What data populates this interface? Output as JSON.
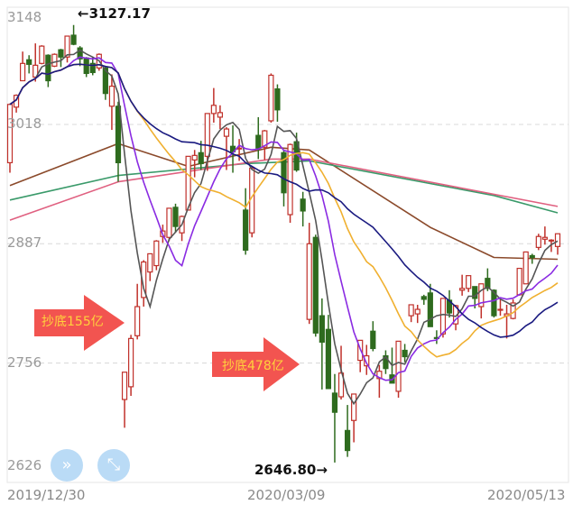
{
  "chart_data": {
    "type": "candlestick",
    "ylim": [
      2626,
      3148
    ],
    "y_ticks": [
      "3148",
      "3018",
      "2887",
      "2756",
      "2626"
    ],
    "x_tick_labels": [
      "2019/12/30",
      "2020/03/09",
      "2020/05/13"
    ],
    "grid": "dashed horizontal",
    "up_color": "#c0302a",
    "down_color": "#2e6b1e",
    "dates": [
      "2019/12/30",
      "2019/12/31",
      "2020/01/02",
      "2020/01/03",
      "2020/01/06",
      "2020/01/07",
      "2020/01/08",
      "2020/01/09",
      "2020/01/10",
      "2020/01/13",
      "2020/01/14",
      "2020/01/15",
      "2020/01/16",
      "2020/01/17",
      "2020/01/20",
      "2020/01/21",
      "2020/01/22",
      "2020/01/23",
      "2020/02/03",
      "2020/02/04",
      "2020/02/05",
      "2020/02/06",
      "2020/02/07",
      "2020/02/10",
      "2020/02/11",
      "2020/02/12",
      "2020/02/13",
      "2020/02/14",
      "2020/02/17",
      "2020/02/18",
      "2020/02/19",
      "2020/02/20",
      "2020/02/21",
      "2020/02/24",
      "2020/02/25",
      "2020/02/26",
      "2020/02/27",
      "2020/02/28",
      "2020/03/02",
      "2020/03/03",
      "2020/03/04",
      "2020/03/05",
      "2020/03/06",
      "2020/03/09",
      "2020/03/10",
      "2020/03/11",
      "2020/03/12",
      "2020/03/13",
      "2020/03/16",
      "2020/03/17",
      "2020/03/18",
      "2020/03/19",
      "2020/03/20",
      "2020/03/23",
      "2020/03/24",
      "2020/03/25",
      "2020/03/26",
      "2020/03/27",
      "2020/03/30",
      "2020/03/31",
      "2020/04/01",
      "2020/04/02",
      "2020/04/03",
      "2020/04/07",
      "2020/04/08",
      "2020/04/09",
      "2020/04/10",
      "2020/04/13",
      "2020/04/14",
      "2020/04/15",
      "2020/04/16",
      "2020/04/17",
      "2020/04/20",
      "2020/04/21",
      "2020/04/22",
      "2020/04/23",
      "2020/04/24",
      "2020/04/27",
      "2020/04/28",
      "2020/04/29",
      "2020/04/30",
      "2020/05/06",
      "2020/05/07",
      "2020/05/08",
      "2020/05/11",
      "2020/05/12",
      "2020/05/13"
    ],
    "ohlc": [
      [
        2976,
        3041,
        2965,
        3040
      ],
      [
        3037,
        3051,
        3031,
        3050
      ],
      [
        3066,
        3098,
        3066,
        3085
      ],
      [
        3089,
        3094,
        3074,
        3084
      ],
      [
        3070,
        3107,
        3065,
        3083
      ],
      [
        3085,
        3105,
        3084,
        3104
      ],
      [
        3094,
        3095,
        3059,
        3066
      ],
      [
        3082,
        3096,
        3081,
        3095
      ],
      [
        3100,
        3101,
        3081,
        3092
      ],
      [
        3092,
        3115,
        3086,
        3115
      ],
      [
        3116,
        3127.17,
        3105,
        3106
      ],
      [
        3102,
        3104,
        3082,
        3090
      ],
      [
        3091,
        3092,
        3070,
        3074
      ],
      [
        3085,
        3092,
        3072,
        3075
      ],
      [
        3080,
        3096,
        3077,
        3095
      ],
      [
        3080,
        3081,
        3045,
        3052
      ],
      [
        3038,
        3073,
        3012,
        3060
      ],
      [
        3038,
        3043,
        2955,
        2976
      ],
      [
        2716,
        2746,
        2685,
        2746
      ],
      [
        2730,
        2787,
        2720,
        2783
      ],
      [
        2786,
        2843,
        2782,
        2818
      ],
      [
        2828,
        2869,
        2818,
        2867
      ],
      [
        2856,
        2876,
        2846,
        2876
      ],
      [
        2863,
        2891,
        2858,
        2890
      ],
      [
        2895,
        2908,
        2888,
        2901
      ],
      [
        2894,
        2926,
        2890,
        2926
      ],
      [
        2927,
        2931,
        2899,
        2906
      ],
      [
        2899,
        2918,
        2890,
        2917
      ],
      [
        2924,
        2983,
        2924,
        2983
      ],
      [
        2979,
        2990,
        2960,
        2984
      ],
      [
        2987,
        3000,
        2968,
        2975
      ],
      [
        2983,
        3030,
        2967,
        3030
      ],
      [
        3030,
        3058,
        3020,
        3039
      ],
      [
        3026,
        3039,
        3013,
        3031
      ],
      [
        3005,
        3015,
        2968,
        3013
      ],
      [
        2994,
        3017,
        2965,
        2988
      ],
      [
        2992,
        3002,
        2978,
        2992
      ],
      [
        2924,
        2948,
        2875,
        2880
      ],
      [
        2899,
        2971,
        2894,
        2970
      ],
      [
        3006,
        3026,
        2980,
        2992
      ],
      [
        2993,
        3012,
        2979,
        3011
      ],
      [
        3022,
        3074,
        3020,
        3072
      ],
      [
        3057,
        3062,
        3021,
        3034
      ],
      [
        2987,
        2989,
        2928,
        2943
      ],
      [
        2919,
        2997,
        2910,
        2996
      ],
      [
        2999,
        3009,
        2966,
        2968
      ],
      [
        2936,
        2944,
        2906,
        2923
      ],
      [
        2804,
        2910,
        2799,
        2887
      ],
      [
        2894,
        2897,
        2785,
        2789
      ],
      [
        2808,
        2827,
        2727,
        2779
      ],
      [
        2793,
        2809,
        2728,
        2728
      ],
      [
        2723,
        2744,
        2646.8,
        2702
      ],
      [
        2719,
        2775,
        2716,
        2745
      ],
      [
        2682,
        2710,
        2653,
        2660
      ],
      [
        2693,
        2722,
        2669,
        2722
      ],
      [
        2759,
        2781,
        2746,
        2781
      ],
      [
        2753,
        2776,
        2743,
        2764
      ],
      [
        2791,
        2802,
        2769,
        2772
      ],
      [
        2739,
        2754,
        2718,
        2747
      ],
      [
        2764,
        2770,
        2744,
        2750
      ],
      [
        2743,
        2773,
        2734,
        2734
      ],
      [
        2725,
        2780,
        2718,
        2780
      ],
      [
        2770,
        2777,
        2757,
        2763
      ],
      [
        2808,
        2820,
        2801,
        2820
      ],
      [
        2810,
        2820,
        2800,
        2815
      ],
      [
        2829,
        2831,
        2820,
        2826
      ],
      [
        2833,
        2843,
        2796,
        2796
      ],
      [
        2784,
        2792,
        2777,
        2783
      ],
      [
        2788,
        2827,
        2784,
        2827
      ],
      [
        2825,
        2836,
        2806,
        2811
      ],
      [
        2799,
        2820,
        2792,
        2819
      ],
      [
        2836,
        2853,
        2830,
        2838
      ],
      [
        2838,
        2852,
        2834,
        2852
      ],
      [
        2840,
        2840,
        2816,
        2827
      ],
      [
        2818,
        2843,
        2805,
        2843
      ],
      [
        2849,
        2860,
        2835,
        2838
      ],
      [
        2836,
        2837,
        2806,
        2808
      ],
      [
        2815,
        2826,
        2808,
        2815
      ],
      [
        2808,
        2820,
        2783,
        2810
      ],
      [
        2805,
        2826,
        2804,
        2822
      ],
      [
        2831,
        2860,
        2830,
        2860
      ],
      [
        2843,
        2878,
        2843,
        2878
      ],
      [
        2874,
        2876,
        2865,
        2872
      ],
      [
        2883,
        2898,
        2880,
        2895
      ],
      [
        2892,
        2906,
        2886,
        2894
      ],
      [
        2890,
        2892,
        2878,
        2891
      ],
      [
        2884,
        2898,
        2875,
        2898
      ]
    ],
    "moving_averages": [
      {
        "period": 5,
        "color": "#555555"
      },
      {
        "period": 10,
        "color": "#8a2be2"
      },
      {
        "period": 20,
        "color": "#f0b030"
      },
      {
        "period": 30,
        "color": "#1a1a80"
      }
    ],
    "long_averages": [
      {
        "color": "#8b4a2b",
        "points": [
          [
            "2019/12/30",
            2951
          ],
          [
            "2020/01/23",
            2997
          ],
          [
            "2020/02/17",
            2972
          ],
          [
            "2020/03/05",
            2993
          ],
          [
            "2020/03/13",
            2990
          ],
          [
            "2020/04/10",
            2905
          ],
          [
            "2020/04/24",
            2872
          ],
          [
            "2020/05/13",
            2870
          ]
        ]
      },
      {
        "color": "#3a9a6a",
        "points": [
          [
            "2019/12/30",
            2935
          ],
          [
            "2020/01/23",
            2962
          ],
          [
            "2020/02/28",
            2975
          ],
          [
            "2020/03/13",
            2978
          ],
          [
            "2020/04/24",
            2940
          ],
          [
            "2020/05/13",
            2921
          ]
        ]
      },
      {
        "color": "#e06080",
        "points": [
          [
            "2019/12/30",
            2913
          ],
          [
            "2020/01/23",
            2955
          ],
          [
            "2020/03/05",
            2980
          ],
          [
            "2020/03/13",
            2980
          ],
          [
            "2020/05/13",
            2928
          ]
        ]
      }
    ],
    "annotations": {
      "high": "←3127.17",
      "low": "2646.80→",
      "arrow1": "抄底155亿",
      "arrow2": "抄底478亿",
      "arrow_color": "#f25450"
    }
  },
  "controls": {
    "collapse_icon": "double-chevron-icon",
    "expand_icon": "expand-arrows-icon"
  }
}
